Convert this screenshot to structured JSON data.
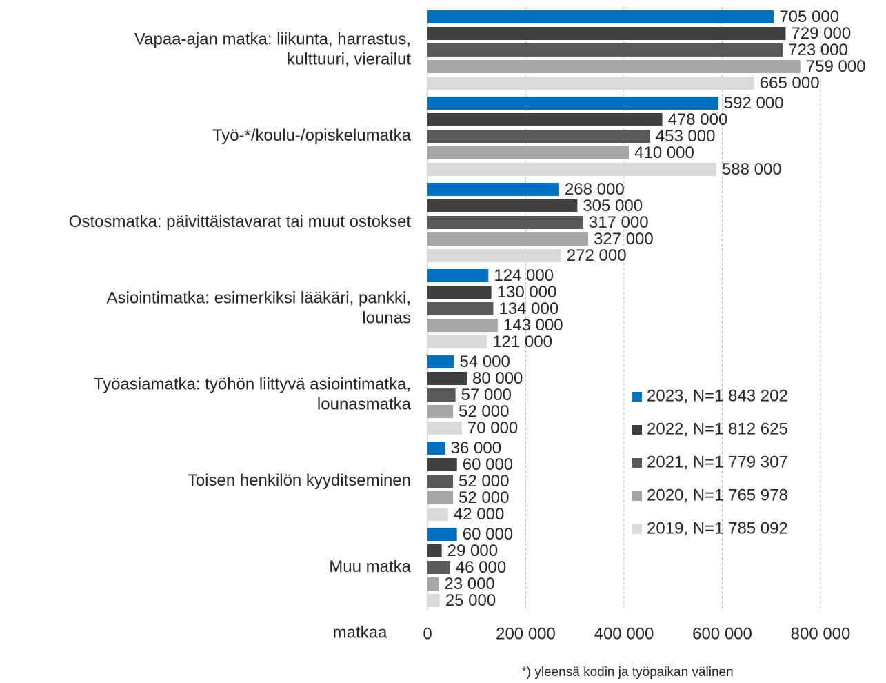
{
  "chart_data": {
    "type": "bar",
    "orientation": "horizontal",
    "categories": [
      [
        "Vapaa-ajan matka: liikunta, harrastus,",
        "kulttuuri, vierailut"
      ],
      [
        "Työ-*/koulu-/opiskelumatka"
      ],
      [
        "Ostosmatka: päivittäistavarat tai muut ostokset"
      ],
      [
        "Asiointimatka: esimerkiksi lääkäri, pankki,",
        "lounas"
      ],
      [
        "Työasiamatka: työhön liittyvä asiointimatka,",
        "lounasmatka"
      ],
      [
        "Toisen henkilön kyyditseminen"
      ],
      [
        "Muu matka"
      ]
    ],
    "series": [
      {
        "name": "2023, N=1 843 202",
        "color": "#0070c0",
        "values": [
          705000,
          592000,
          268000,
          124000,
          54000,
          36000,
          60000
        ],
        "value_labels": [
          "705 000",
          "592 000",
          "268 000",
          "124 000",
          "54 000",
          "36 000",
          "60 000"
        ]
      },
      {
        "name": "2022, N=1 812 625",
        "color": "#404040",
        "values": [
          729000,
          478000,
          305000,
          130000,
          80000,
          60000,
          29000
        ],
        "value_labels": [
          "729 000",
          "478 000",
          "305 000",
          "130 000",
          "80 000",
          "60 000",
          "29 000"
        ]
      },
      {
        "name": "2021, N=1 779 307",
        "color": "#595959",
        "values": [
          723000,
          453000,
          317000,
          134000,
          57000,
          52000,
          46000
        ],
        "value_labels": [
          "723 000",
          "453 000",
          "317 000",
          "134 000",
          "57 000",
          "52 000",
          "46 000"
        ]
      },
      {
        "name": "2020, N=1 765 978",
        "color": "#a6a6a6",
        "values": [
          759000,
          410000,
          327000,
          143000,
          52000,
          52000,
          23000
        ],
        "value_labels": [
          "759 000",
          "410 000",
          "327 000",
          "143 000",
          "52 000",
          "52 000",
          "23 000"
        ]
      },
      {
        "name": "2019, N=1 785 092",
        "color": "#d9d9d9",
        "values": [
          665000,
          588000,
          272000,
          121000,
          70000,
          42000,
          25000
        ],
        "value_labels": [
          "665 000",
          "588 000",
          "272 000",
          "121 000",
          "70 000",
          "42 000",
          "25 000"
        ]
      }
    ],
    "x_label": "matkaa",
    "xlim": [
      0,
      800000
    ],
    "xticks": [
      0,
      {
        "value": 200000,
        "label": "200 000"
      },
      {
        "value": 400000,
        "label": "400 000"
      },
      {
        "value": 600000,
        "label": "600 000"
      },
      {
        "value": 800000,
        "label": "800 000"
      }
    ],
    "grid": true,
    "legend": "right",
    "note": "*) yleensä kodin ja työpaikan välinen"
  }
}
